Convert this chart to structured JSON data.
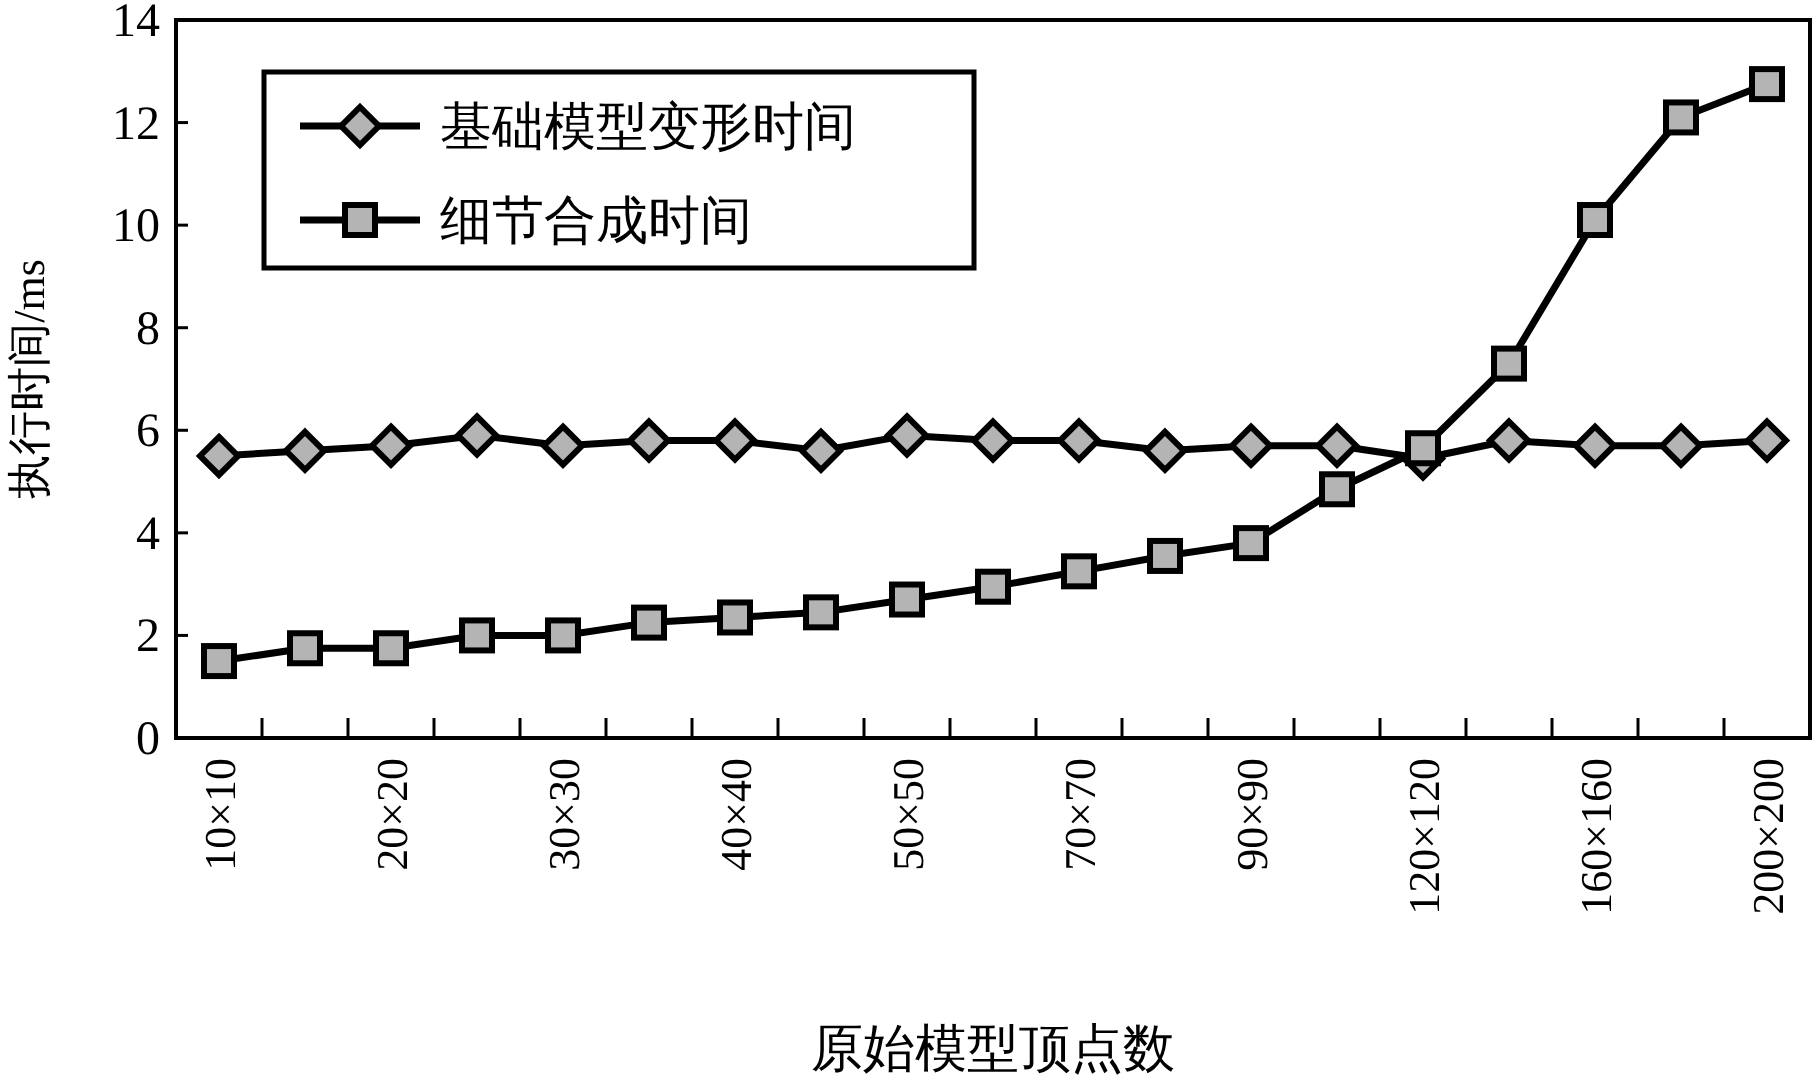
{
  "chart_data": {
    "type": "line",
    "xlabel": "原始模型顶点数",
    "ylabel": "执行时间/ms",
    "categories": [
      "10×10",
      null,
      "20×20",
      null,
      "30×30",
      null,
      "40×40",
      null,
      "50×50",
      null,
      "70×70",
      null,
      "90×90",
      null,
      "120×120",
      null,
      "160×160",
      null,
      "200×200"
    ],
    "series": [
      {
        "name": "基础模型变形时间",
        "color": "#b4b4b4",
        "marker": "diamond",
        "values": [
          5.5,
          5.6,
          5.7,
          5.9,
          5.7,
          5.8,
          5.8,
          5.6,
          5.9,
          5.8,
          5.8,
          5.6,
          5.7,
          5.7,
          5.45,
          5.8,
          5.7,
          5.7,
          5.8
        ]
      },
      {
        "name": "细节合成时间",
        "color": "#b4b4b4",
        "marker": "square",
        "values": [
          1.5,
          1.75,
          1.75,
          2.0,
          2.0,
          2.25,
          2.35,
          2.45,
          2.7,
          2.95,
          3.25,
          3.55,
          3.8,
          4.85,
          5.65,
          7.3,
          10.1,
          12.1,
          12.75
        ]
      }
    ],
    "ylim": [
      0,
      14
    ],
    "yticks": [
      0,
      2,
      4,
      6,
      8,
      10,
      12,
      14
    ],
    "legend": "top left",
    "grid": false,
    "line_style": "solid"
  }
}
